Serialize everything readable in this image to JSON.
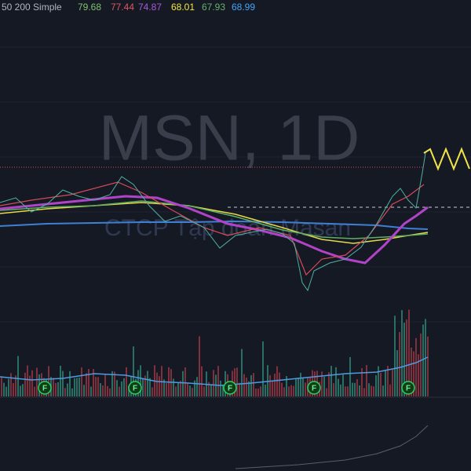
{
  "legend": {
    "label": "50 200 Simple",
    "values": [
      "79.68",
      "77.44",
      "74.87",
      "68.01",
      "67.93",
      "68.99"
    ]
  },
  "watermark": {
    "symbol": "MSN, 1D",
    "name": "CTCP Tập đoàn Masan"
  },
  "markers": [
    "F",
    "F",
    "F",
    "F",
    "F"
  ]
}
